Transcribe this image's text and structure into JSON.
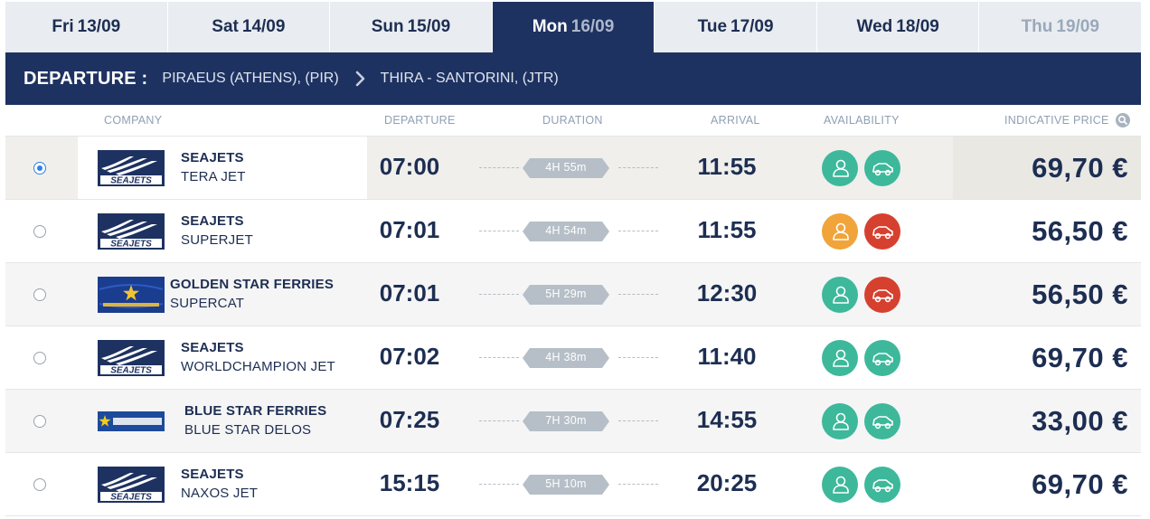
{
  "colors": {
    "navy": "#1e3261",
    "text_dark": "#1d2e52",
    "green": "#3db89b",
    "orange": "#f0a43a",
    "red": "#d6402f",
    "duration_badge": "#b6bfc7",
    "radio_selected": "#2f80ed"
  },
  "tabs": [
    {
      "day": "Fri",
      "date": "13/09"
    },
    {
      "day": "Sat",
      "date": "14/09"
    },
    {
      "day": "Sun",
      "date": "15/09"
    },
    {
      "day": "Mon",
      "date": "16/09",
      "state": "active"
    },
    {
      "day": "Tue",
      "date": "17/09"
    },
    {
      "day": "Wed",
      "date": "18/09"
    },
    {
      "day": "Thu",
      "date": "19/09",
      "state": "disabled"
    }
  ],
  "departure": {
    "label": "DEPARTURE :",
    "from": "PIRAEUS (ATHENS), (PIR)",
    "to": "THIRA - SANTORINI, (JTR)",
    "separator_icon": "chevron-right-icon"
  },
  "columns": {
    "company": "COMPANY",
    "departure": "DEPARTURE",
    "duration": "DURATION",
    "arrival": "ARRIVAL",
    "availability": "AVAILABILITY",
    "price": "INDICATIVE PRICE",
    "price_icon": "search-icon"
  },
  "rows": [
    {
      "selected": true,
      "logo": "seajets-logo",
      "company": "SEAJETS",
      "vessel": "TERA JET",
      "departure": "07:00",
      "duration": "4H 55m",
      "arrival": "11:55",
      "passenger_status": "available",
      "vehicle_status": "available",
      "price": "69,70 €"
    },
    {
      "selected": false,
      "logo": "seajets-logo",
      "company": "SEAJETS",
      "vessel": "SUPERJET",
      "departure": "07:01",
      "duration": "4H 54m",
      "arrival": "11:55",
      "passenger_status": "limited",
      "vehicle_status": "unavailable",
      "price": "56,50 €"
    },
    {
      "selected": false,
      "logo": "golden-star-ferries-logo",
      "company": "GOLDEN STAR FERRIES",
      "vessel": "SUPERCAT",
      "departure": "07:01",
      "duration": "5H 29m",
      "arrival": "12:30",
      "passenger_status": "available",
      "vehicle_status": "unavailable",
      "price": "56,50 €"
    },
    {
      "selected": false,
      "logo": "seajets-logo",
      "company": "SEAJETS",
      "vessel": "WORLDCHAMPION JET",
      "departure": "07:02",
      "duration": "4H 38m",
      "arrival": "11:40",
      "passenger_status": "available",
      "vehicle_status": "available",
      "price": "69,70 €"
    },
    {
      "selected": false,
      "logo": "blue-star-ferries-logo",
      "company": "BLUE STAR FERRIES",
      "vessel": "BLUE STAR DELOS",
      "departure": "07:25",
      "duration": "7H 30m",
      "arrival": "14:55",
      "passenger_status": "available",
      "vehicle_status": "available",
      "price": "33,00 €"
    },
    {
      "selected": false,
      "logo": "seajets-logo",
      "company": "SEAJETS",
      "vessel": "NAXOS JET",
      "departure": "15:15",
      "duration": "5H 10m",
      "arrival": "20:25",
      "passenger_status": "available",
      "vehicle_status": "available",
      "price": "69,70 €"
    }
  ]
}
